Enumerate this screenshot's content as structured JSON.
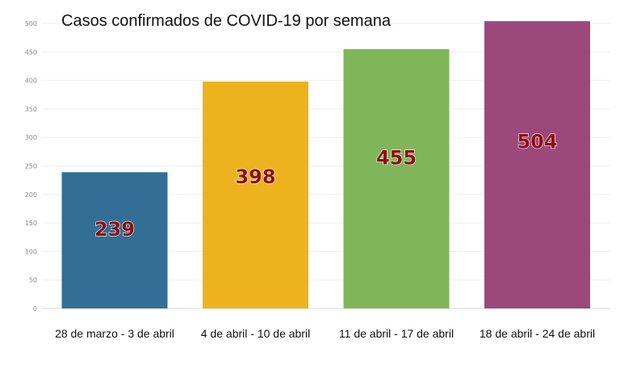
{
  "chart_data": {
    "type": "bar",
    "title": "Casos confirmados de COVID-19 por semana",
    "xlabel": "",
    "ylabel": "",
    "categories": [
      "28 de marzo - 3 de abril",
      "4 de abril - 10 de abril",
      "11 de abril - 17 de abril",
      "18 de abril - 24 de abril"
    ],
    "values": [
      239,
      398,
      455,
      504
    ],
    "ylim": [
      0,
      500
    ],
    "yticks": [
      0,
      50,
      100,
      150,
      200,
      250,
      300,
      350,
      400,
      450,
      500
    ],
    "grid": true,
    "bar_colors": [
      "#336e96",
      "#edb31f",
      "#7fb65a",
      "#9c487c"
    ],
    "label_color": "#8b1010",
    "label_stroke": "#ffffff"
  }
}
